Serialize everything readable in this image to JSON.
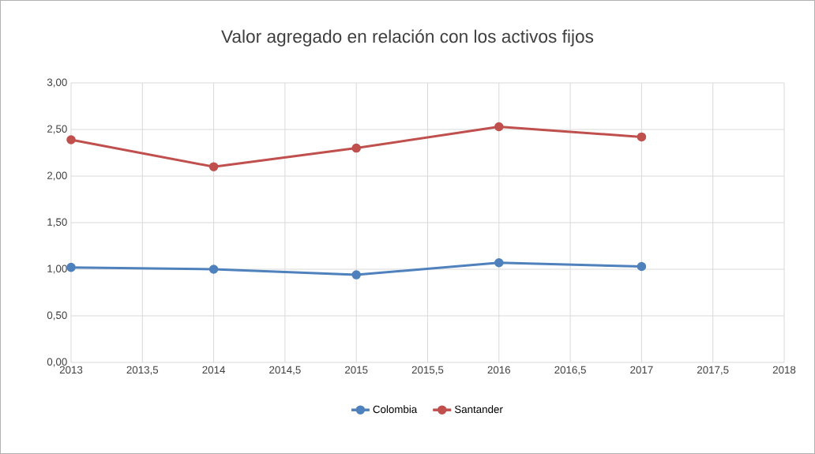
{
  "chart_data": {
    "type": "line",
    "title": "Valor agregado en relación con los activos fijos",
    "series": [
      {
        "name": "Colombia",
        "color": "#4f81bd",
        "x": [
          2013,
          2014,
          2015,
          2016,
          2017
        ],
        "values": [
          1.02,
          1.0,
          0.94,
          1.07,
          1.03
        ]
      },
      {
        "name": "Santander",
        "color": "#c0504d",
        "x": [
          2013,
          2014,
          2015,
          2016,
          2017
        ],
        "values": [
          2.39,
          2.1,
          2.3,
          2.53,
          2.42
        ]
      }
    ],
    "xlim": [
      2013,
      2018
    ],
    "xticks": [
      2013,
      {
        "value": 2013.5,
        "label": "2013,5"
      },
      2014,
      {
        "value": 2014.5,
        "label": "2014,5"
      },
      2015,
      {
        "value": 2015.5,
        "label": "2015,5"
      },
      2016,
      {
        "value": 2016.5,
        "label": "2016,5"
      },
      2017,
      {
        "value": 2017.5,
        "label": "2017,5"
      },
      2018
    ],
    "ylim": [
      0,
      3
    ],
    "yticks": [
      {
        "value": 0,
        "label": "0,00"
      },
      {
        "value": 0.5,
        "label": "0,50"
      },
      {
        "value": 1,
        "label": "1,00"
      },
      {
        "value": 1.5,
        "label": "1,50"
      },
      {
        "value": 2,
        "label": "2,00"
      },
      {
        "value": 2.5,
        "label": "2,50"
      },
      {
        "value": 3,
        "label": "3,00"
      }
    ],
    "grid": true,
    "legend": "bottom",
    "marker": "circle",
    "line_style": "solid"
  }
}
